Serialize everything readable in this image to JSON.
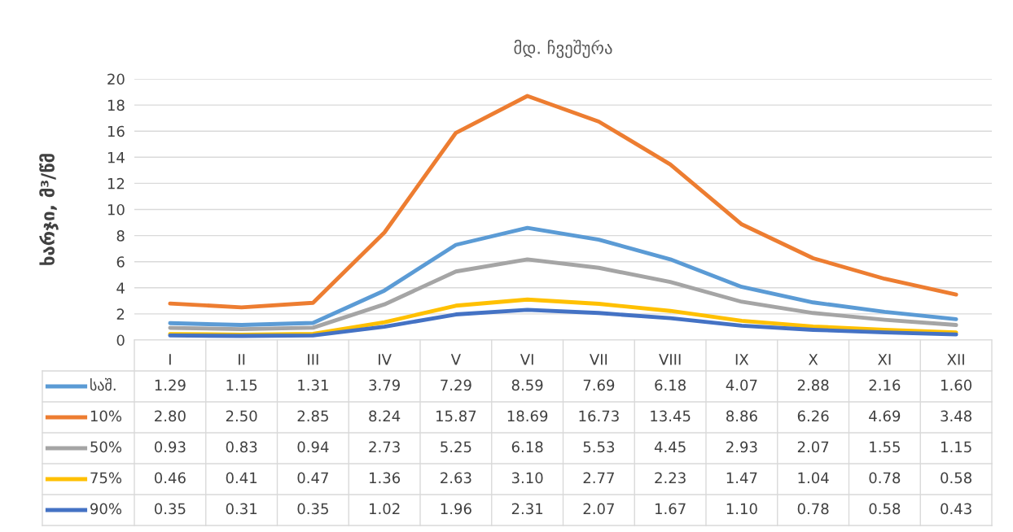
{
  "chart_data": {
    "type": "line",
    "title": "მდ. ჩვეშურა",
    "ylabel": "ხარჯი, მ³/წმ",
    "categories": [
      "I",
      "II",
      "III",
      "IV",
      "V",
      "VI",
      "VII",
      "VIII",
      "IX",
      "X",
      "XI",
      "XII"
    ],
    "ylim": [
      0,
      20
    ],
    "yticks": [
      0,
      2,
      4,
      6,
      8,
      10,
      12,
      14,
      16,
      18,
      20
    ],
    "grid": "y",
    "legend": "bottom left",
    "series": [
      {
        "name": "საშ.",
        "color": "#5b9bd5",
        "values": [
          1.29,
          1.15,
          1.31,
          3.79,
          7.29,
          8.59,
          7.69,
          6.18,
          4.07,
          2.88,
          2.16,
          1.6
        ],
        "value_labels": [
          "1.29",
          "1.15",
          "1.31",
          "3.79",
          "7.29",
          "8.59",
          "7.69",
          "6.18",
          "4.07",
          "2.88",
          "2.16",
          "1.60"
        ]
      },
      {
        "name": "10%",
        "color": "#ed7d31",
        "values": [
          2.8,
          2.5,
          2.85,
          8.24,
          15.87,
          18.69,
          16.73,
          13.45,
          8.86,
          6.26,
          4.69,
          3.48
        ],
        "value_labels": [
          "2.80",
          "2.50",
          "2.85",
          "8.24",
          "15.87",
          "18.69",
          "16.73",
          "13.45",
          "8.86",
          "6.26",
          "4.69",
          "3.48"
        ]
      },
      {
        "name": "50%",
        "color": "#a5a5a5",
        "values": [
          0.93,
          0.83,
          0.94,
          2.73,
          5.25,
          6.18,
          5.53,
          4.45,
          2.93,
          2.07,
          1.55,
          1.15
        ],
        "value_labels": [
          "0.93",
          "0.83",
          "0.94",
          "2.73",
          "5.25",
          "6.18",
          "5.53",
          "4.45",
          "2.93",
          "2.07",
          "1.55",
          "1.15"
        ]
      },
      {
        "name": "75%",
        "color": "#ffc000",
        "values": [
          0.46,
          0.41,
          0.47,
          1.36,
          2.63,
          3.1,
          2.77,
          2.23,
          1.47,
          1.04,
          0.78,
          0.58
        ],
        "value_labels": [
          "0.46",
          "0.41",
          "0.47",
          "1.36",
          "2.63",
          "3.10",
          "2.77",
          "2.23",
          "1.47",
          "1.04",
          "0.78",
          "0.58"
        ]
      },
      {
        "name": "90%",
        "color": "#4472c4",
        "values": [
          0.35,
          0.31,
          0.35,
          1.02,
          1.96,
          2.31,
          2.07,
          1.67,
          1.1,
          0.78,
          0.58,
          0.43
        ],
        "value_labels": [
          "0.35",
          "0.31",
          "0.35",
          "1.02",
          "1.96",
          "2.31",
          "2.07",
          "1.67",
          "1.10",
          "0.78",
          "0.58",
          "0.43"
        ]
      }
    ]
  }
}
